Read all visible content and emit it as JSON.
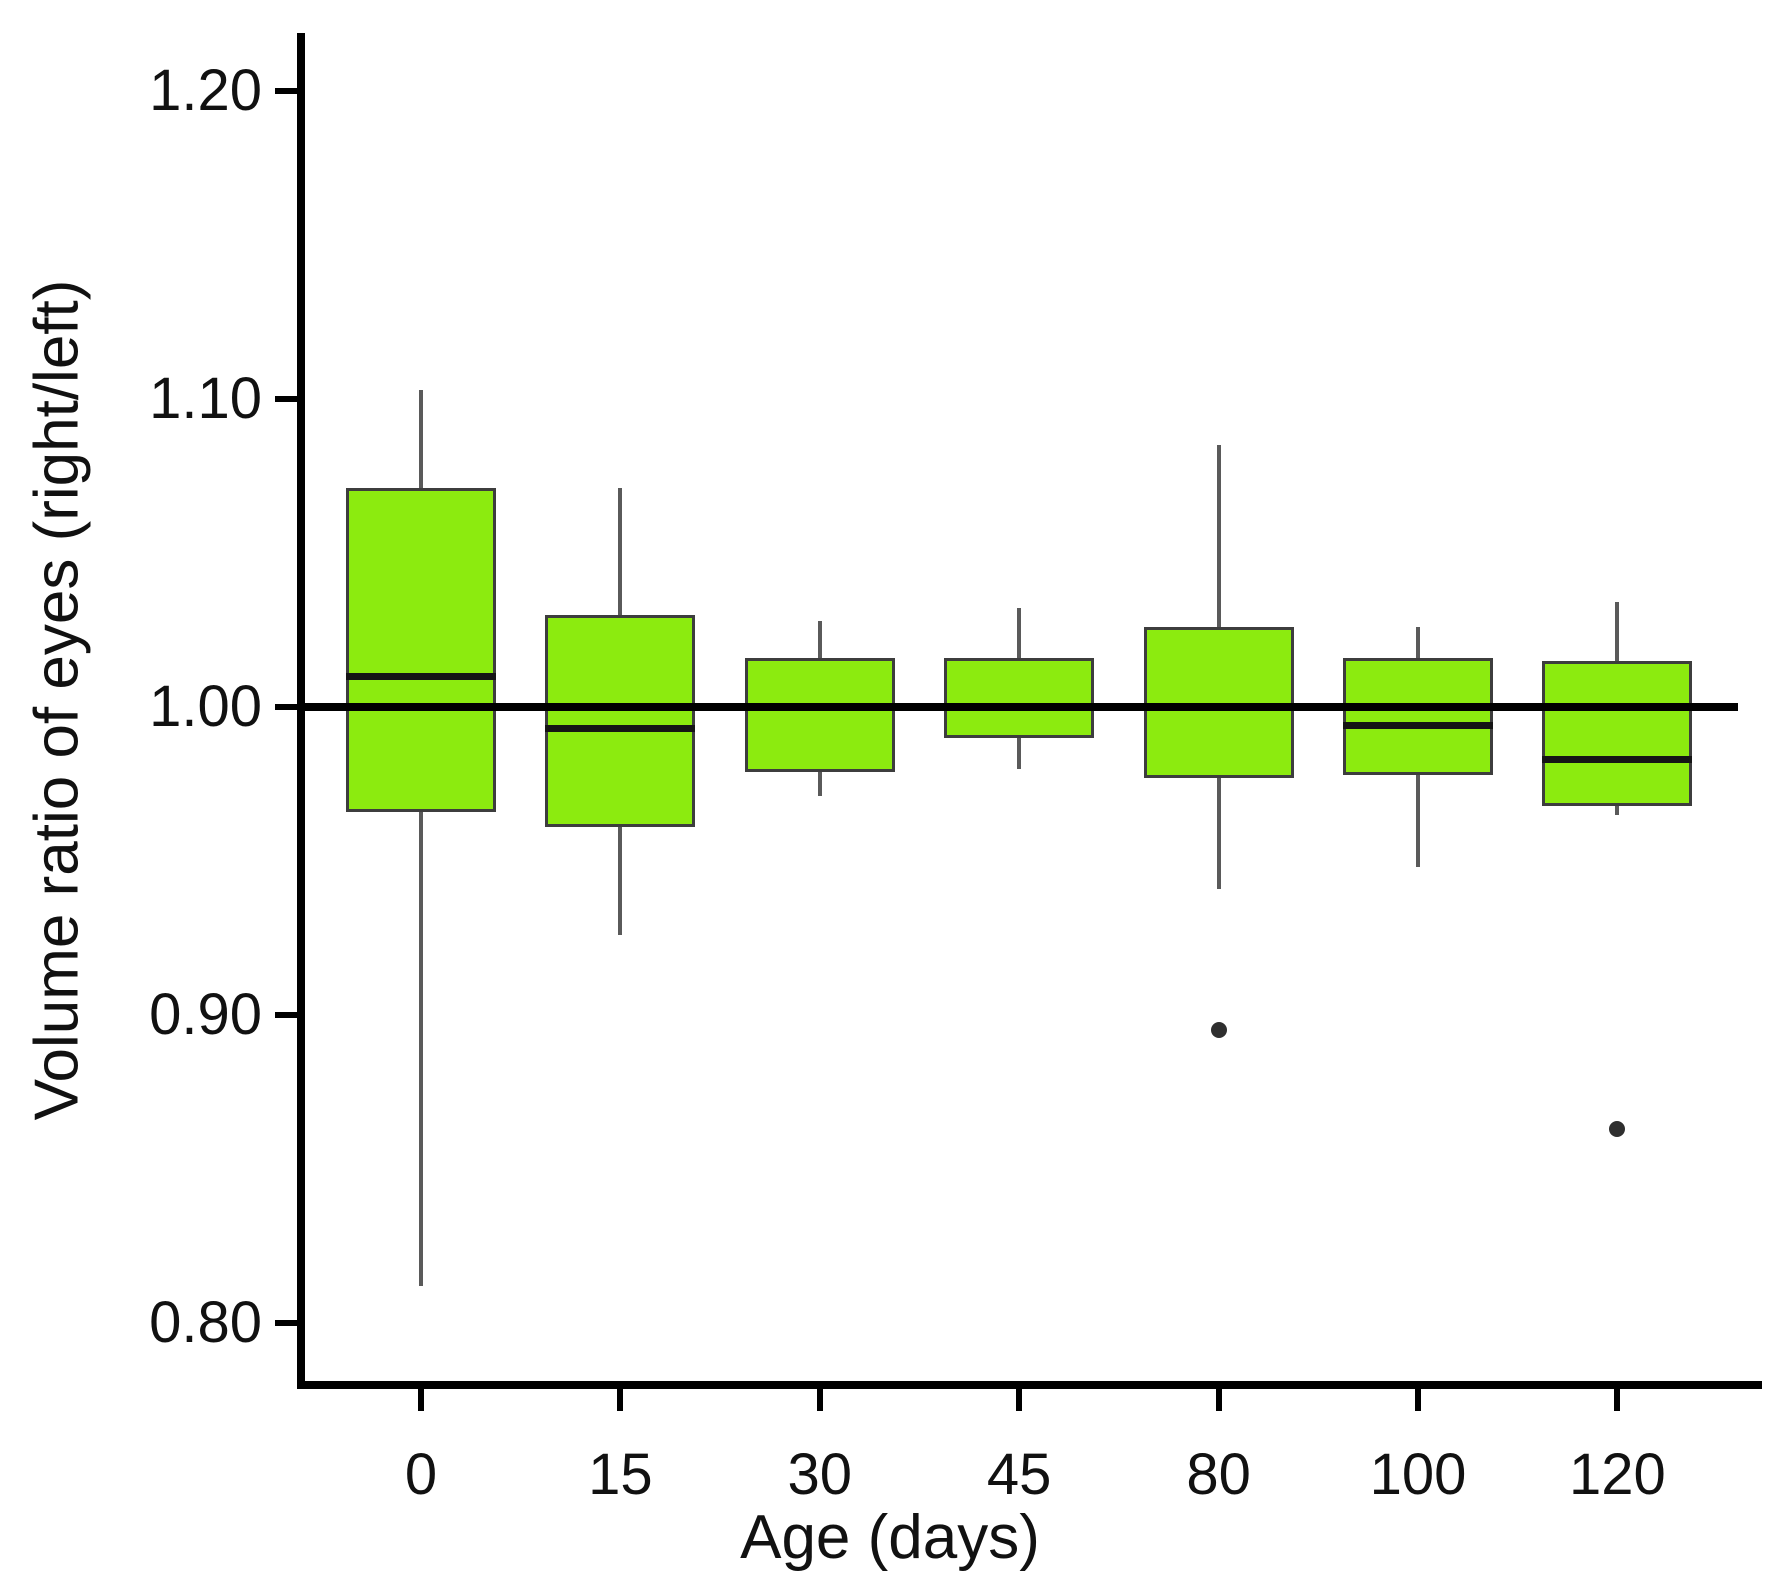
{
  "figure": {
    "background": "#ffffff"
  },
  "chart_data": {
    "type": "boxplot",
    "title": "",
    "xlabel": "Age (days)",
    "ylabel": "Volume ratio of eyes (right/left)",
    "categories": [
      "0",
      "15",
      "30",
      "45",
      "80",
      "100",
      "120"
    ],
    "y_ticks": [
      {
        "label": "1.20",
        "value": 1.2
      },
      {
        "label": "1.10",
        "value": 1.1
      },
      {
        "label": "1.00",
        "value": 1.0
      },
      {
        "label": "0.90",
        "value": 0.9
      },
      {
        "label": "0.80",
        "value": 0.8
      }
    ],
    "ylim": [
      0.78,
      1.22
    ],
    "reference_line": 1.0,
    "grid": false,
    "legend": false,
    "series": [
      {
        "category": "0",
        "whisker_low": 0.812,
        "q1": 0.966,
        "median": 1.01,
        "q3": 1.071,
        "whisker_high": 1.103,
        "outliers": []
      },
      {
        "category": "15",
        "whisker_low": 0.926,
        "q1": 0.961,
        "median": 0.993,
        "q3": 1.03,
        "whisker_high": 1.071,
        "outliers": []
      },
      {
        "category": "30",
        "whisker_low": 0.971,
        "q1": 0.979,
        "median": 1.0,
        "q3": 1.016,
        "whisker_high": 1.028,
        "outliers": []
      },
      {
        "category": "45",
        "whisker_low": 0.98,
        "q1": 0.99,
        "median": 1.0,
        "q3": 1.016,
        "whisker_high": 1.032,
        "outliers": []
      },
      {
        "category": "80",
        "whisker_low": 0.941,
        "q1": 0.977,
        "median": 1.0,
        "q3": 1.026,
        "whisker_high": 1.085,
        "outliers": [
          0.895
        ]
      },
      {
        "category": "100",
        "whisker_low": 0.948,
        "q1": 0.978,
        "median": 0.994,
        "q3": 1.016,
        "whisker_high": 1.026,
        "outliers": []
      },
      {
        "category": "120",
        "whisker_low": 0.965,
        "q1": 0.968,
        "median": 0.983,
        "q3": 1.015,
        "whisker_high": 1.034,
        "outliers": [
          0.863
        ]
      }
    ],
    "colors": {
      "box_fill": "#8ceb0f",
      "box_border": "#3d3d3d",
      "median": "#151515",
      "whisker": "#5a5a5a",
      "axis": "#000000",
      "reference_line": "#000000",
      "outlier": "#2f2f2f"
    }
  }
}
